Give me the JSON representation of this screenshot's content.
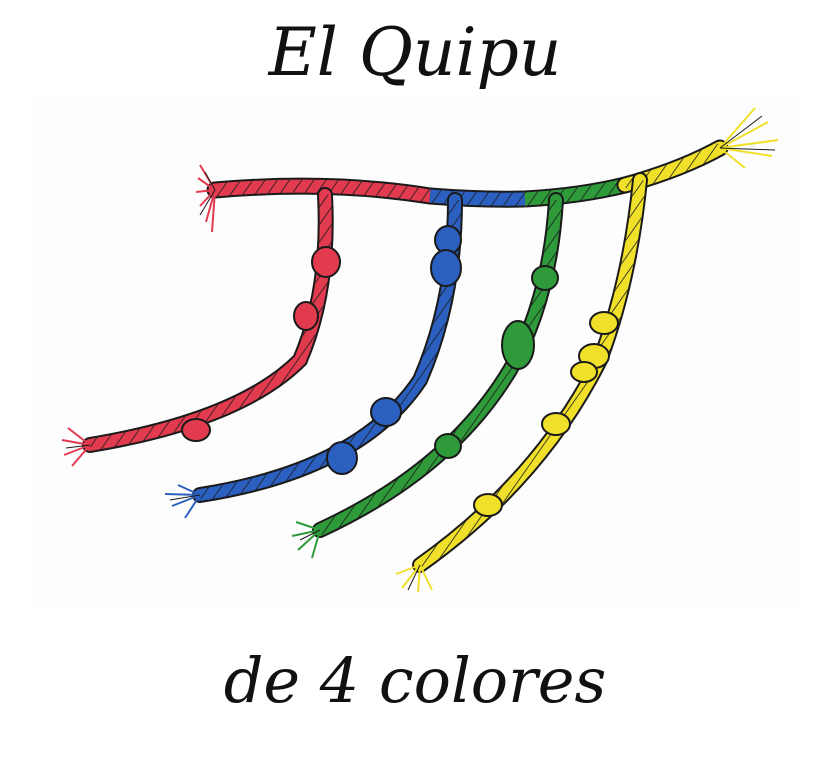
{
  "title": "El Quipu",
  "subtitle": "de 4 colores",
  "colors": {
    "red": "#e23a4f",
    "blue": "#2b5fc0",
    "green": "#2f9a3a",
    "yellow": "#f0e02a",
    "outline": "#1a1a1a"
  },
  "strands": [
    {
      "color_key": "red",
      "knots_shown": 3
    },
    {
      "color_key": "blue",
      "knots_shown": 4
    },
    {
      "color_key": "green",
      "knots_shown": 3
    },
    {
      "color_key": "yellow",
      "knots_shown": 5
    }
  ]
}
